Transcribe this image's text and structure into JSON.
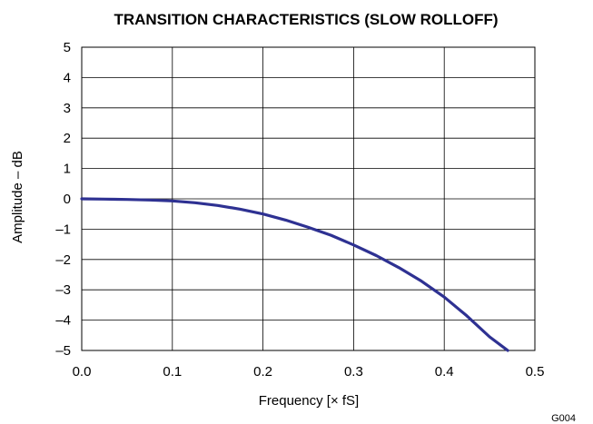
{
  "chart_data": {
    "type": "line",
    "title": "TRANSITION CHARACTERISTICS (SLOW ROLLOFF)",
    "xlabel": "Frequency [× fS]",
    "ylabel": "Amplitude – dB",
    "figure_id": "G004",
    "xlim": [
      0.0,
      0.5
    ],
    "ylim": [
      -5,
      5
    ],
    "x_ticks": [
      "0.0",
      "0.1",
      "0.2",
      "0.3",
      "0.4",
      "0.5"
    ],
    "y_ticks": [
      "5",
      "4",
      "3",
      "2",
      "1",
      "0",
      "–1",
      "–2",
      "–3",
      "–4",
      "–5"
    ],
    "grid": true,
    "series": [
      {
        "color": "#2e3192",
        "x": [
          0.0,
          0.025,
          0.05,
          0.075,
          0.1,
          0.125,
          0.15,
          0.175,
          0.2,
          0.225,
          0.25,
          0.275,
          0.3,
          0.325,
          0.35,
          0.375,
          0.4,
          0.425,
          0.45,
          0.47
        ],
        "y": [
          0.0,
          -0.01,
          -0.02,
          -0.04,
          -0.07,
          -0.13,
          -0.22,
          -0.34,
          -0.5,
          -0.7,
          -0.94,
          -1.2,
          -1.52,
          -1.87,
          -2.27,
          -2.72,
          -3.24,
          -3.86,
          -4.55,
          -5.0
        ]
      }
    ]
  }
}
